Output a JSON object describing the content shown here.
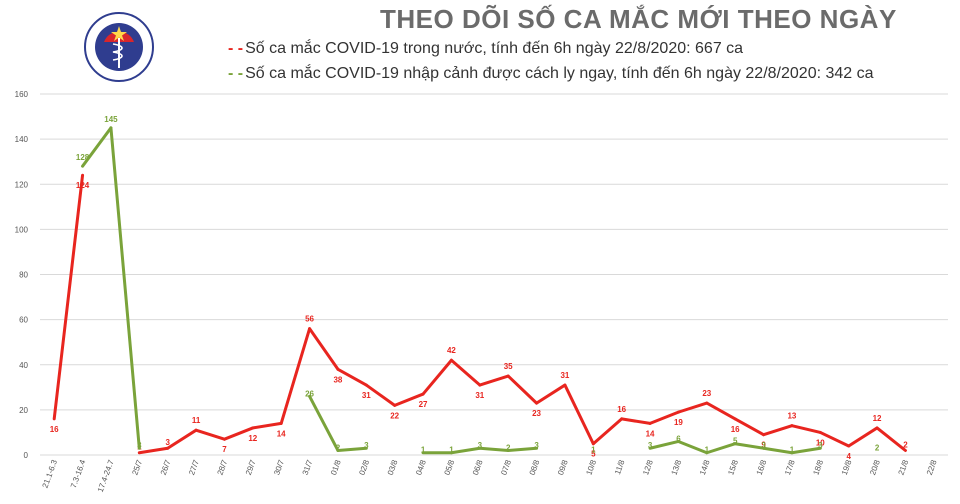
{
  "header": {
    "title": "THEO DÕI SỐ CA MẮC MỚI THEO NGÀY",
    "logo_text": "BỘ Y TẾ · MINISTRY OF HEALTH"
  },
  "colors": {
    "domestic": "#e8251f",
    "imported": "#7aa33a",
    "grid": "#d9d9d9",
    "axis_text": "#555555"
  },
  "chart_data": {
    "type": "line",
    "title": "THEO DÕI SỐ CA MẮC MỚI THEO NGÀY",
    "xlabel": "",
    "ylabel": "",
    "ylim": [
      0,
      160
    ],
    "yticks": [
      0,
      20,
      40,
      60,
      80,
      100,
      120,
      140,
      160
    ],
    "grid": true,
    "legend_position": "top",
    "categories": [
      "21.1-6.3",
      "7.3-16.4",
      "17.4-24.7",
      "25/7",
      "26/7",
      "27/7",
      "28/7",
      "29/7",
      "30/7",
      "31/7",
      "01/8",
      "02/8",
      "03/8",
      "04/8",
      "05/8",
      "06/8",
      "07/8",
      "08/8",
      "09/8",
      "10/8",
      "11/8",
      "12/8",
      "13/8",
      "14/8",
      "15/8",
      "16/8",
      "17/8",
      "18/8",
      "19/8",
      "20/8",
      "21/8",
      "22/8"
    ],
    "series": [
      {
        "name": "Số ca mắc COVID-19 trong nước, tính đến 6h ngày 22/8/2020: 667 ca",
        "color": "#e8251f",
        "values": [
          16,
          124,
          null,
          1,
          3,
          11,
          7,
          12,
          14,
          56,
          38,
          31,
          22,
          27,
          42,
          31,
          35,
          23,
          31,
          5,
          16,
          14,
          19,
          23,
          16,
          9,
          13,
          10,
          4,
          12,
          2,
          null
        ]
      },
      {
        "name": "Số ca mắc COVID-19 nhập cảnh được cách ly ngay, tính đến 6h ngày 22/8/2020: 342 ca",
        "color": "#7aa33a",
        "values": [
          null,
          128,
          145,
          3,
          null,
          null,
          null,
          null,
          null,
          26,
          2,
          3,
          null,
          1,
          1,
          3,
          2,
          3,
          null,
          1,
          null,
          3,
          6,
          1,
          5,
          3,
          1,
          3,
          null,
          2,
          null,
          null
        ]
      }
    ]
  }
}
